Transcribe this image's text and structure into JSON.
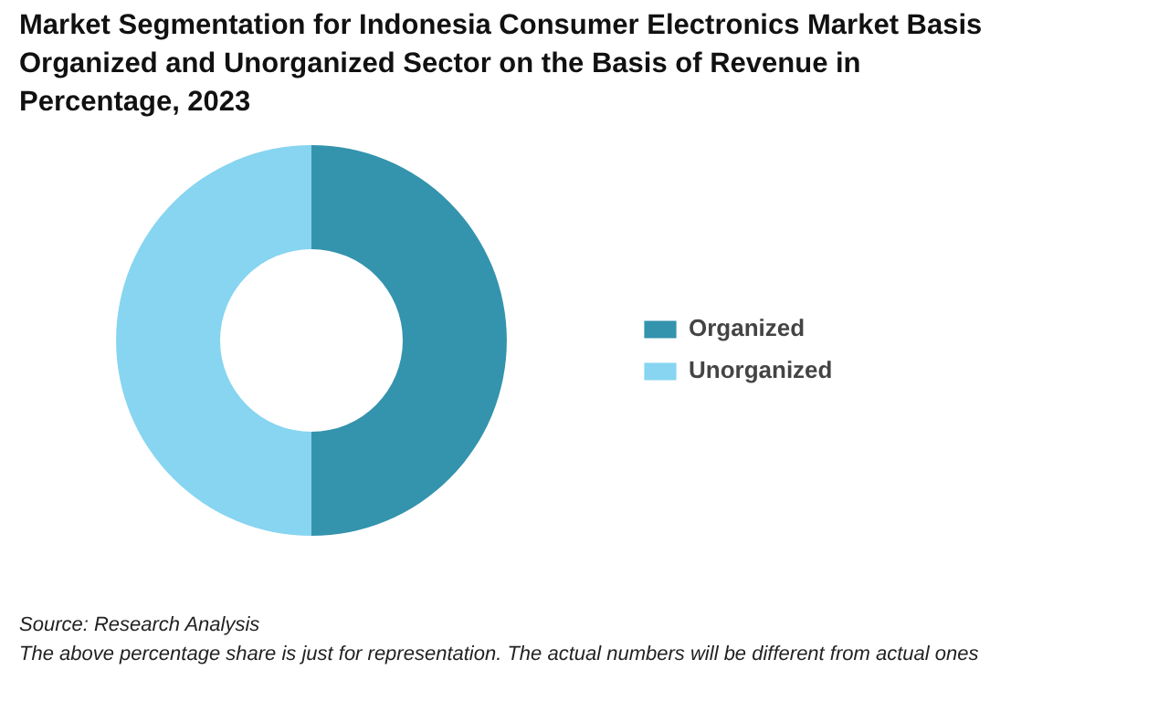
{
  "chart_data": {
    "type": "donut",
    "title": "Market Segmentation for Indonesia Consumer Electronics Market Basis Organized and Unorganized Sector on the Basis of Revenue in Percentage, 2023",
    "categories": [
      "Organized",
      "Unorganized"
    ],
    "values": [
      50,
      50
    ],
    "colors": [
      "#3493ad",
      "#87d5f0"
    ],
    "legend": "right",
    "annotations": [
      "Source: Research Analysis",
      "The above percentage share is just for representation. The actual numbers will be different from actual ones"
    ]
  }
}
